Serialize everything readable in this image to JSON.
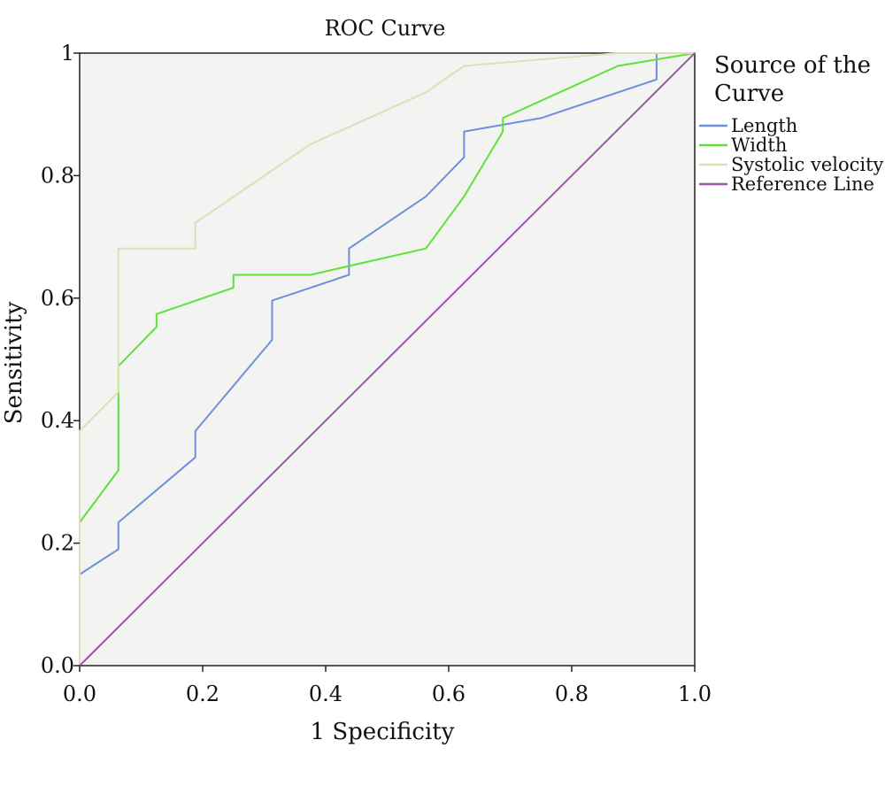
{
  "chart_data": {
    "type": "line",
    "title": "ROC Curve",
    "xlabel": "1 Specificity",
    "ylabel": "Sensitivity",
    "xlim": [
      0,
      1
    ],
    "ylim": [
      0,
      1
    ],
    "x_ticks": [
      "0.0",
      "0.2",
      "0.4",
      "0.6",
      "0.8",
      "1.0"
    ],
    "y_ticks": [
      "0.0",
      "0.2",
      "0.4",
      "0.6",
      "0.8",
      "1"
    ],
    "grid": false,
    "background": "#f3f3f1",
    "legend": {
      "title_lines": [
        "Source of the",
        "Curve"
      ],
      "placement": "right"
    },
    "series": [
      {
        "name": "Length",
        "color": "#6f8fdc",
        "points": [
          [
            0,
            0
          ],
          [
            0,
            0.149
          ],
          [
            0.063,
            0.19
          ],
          [
            0.063,
            0.234
          ],
          [
            0.188,
            0.34
          ],
          [
            0.188,
            0.383
          ],
          [
            0.313,
            0.532
          ],
          [
            0.313,
            0.596
          ],
          [
            0.438,
            0.638
          ],
          [
            0.438,
            0.681
          ],
          [
            0.563,
            0.766
          ],
          [
            0.625,
            0.83
          ],
          [
            0.625,
            0.872
          ],
          [
            0.75,
            0.894
          ],
          [
            0.938,
            0.957
          ],
          [
            0.938,
            1
          ],
          [
            1,
            1
          ]
        ]
      },
      {
        "name": "Width",
        "color": "#5ee23a",
        "points": [
          [
            0,
            0
          ],
          [
            0,
            0.234
          ],
          [
            0.063,
            0.319
          ],
          [
            0.063,
            0.489
          ],
          [
            0.125,
            0.553
          ],
          [
            0.125,
            0.574
          ],
          [
            0.25,
            0.617
          ],
          [
            0.25,
            0.638
          ],
          [
            0.375,
            0.638
          ],
          [
            0.563,
            0.681
          ],
          [
            0.625,
            0.766
          ],
          [
            0.688,
            0.872
          ],
          [
            0.688,
            0.894
          ],
          [
            0.875,
            0.979
          ],
          [
            1,
            1
          ]
        ]
      },
      {
        "name": "Systolic velocity",
        "color": "#dedfb5",
        "points": [
          [
            0,
            0
          ],
          [
            0,
            0.383
          ],
          [
            0.063,
            0.447
          ],
          [
            0.063,
            0.681
          ],
          [
            0.188,
            0.681
          ],
          [
            0.188,
            0.723
          ],
          [
            0.375,
            0.851
          ],
          [
            0.563,
            0.936
          ],
          [
            0.625,
            0.979
          ],
          [
            0.875,
            1
          ],
          [
            1,
            1
          ]
        ]
      },
      {
        "name": "Reference Line",
        "color": "#9b57a8",
        "points": [
          [
            0,
            0
          ],
          [
            1,
            1
          ]
        ]
      }
    ]
  }
}
